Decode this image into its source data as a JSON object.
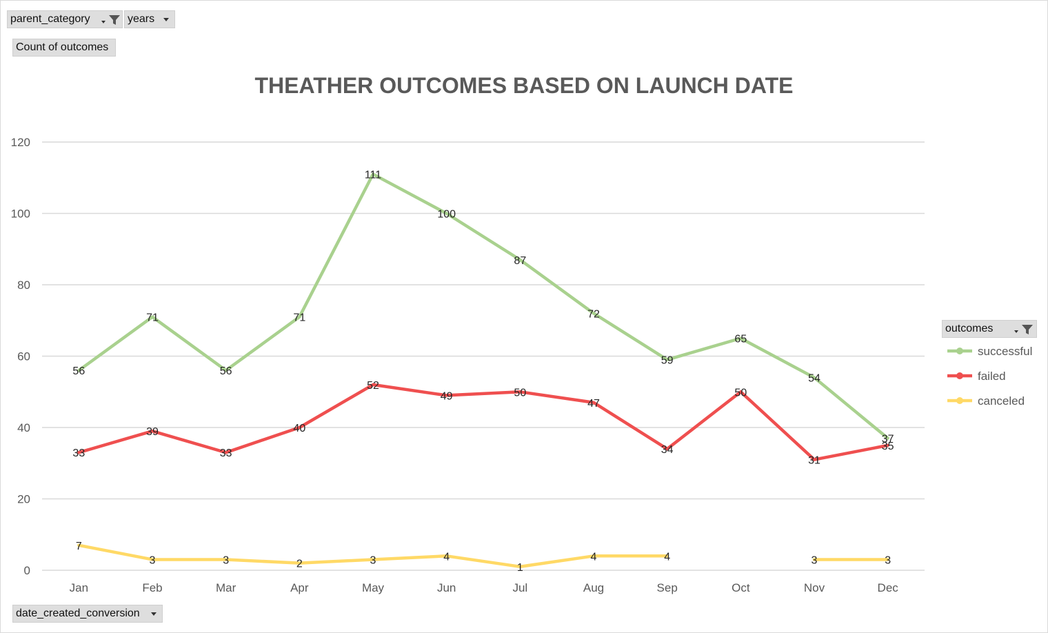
{
  "pivot": {
    "filters": [
      {
        "label": "parent_category",
        "filtered": true
      },
      {
        "label": "years",
        "filtered": false
      }
    ],
    "value_field": "Count of outcomes",
    "axis_field": "date_created_conversion",
    "legend_field": "outcomes"
  },
  "colors": {
    "successful": "#a9d18e",
    "failed": "#ef4f4f",
    "canceled": "#ffd966",
    "grid": "#d9d9d9",
    "title": "#595959",
    "tick": "#595959"
  },
  "chart_data": {
    "type": "line",
    "title": "THEATHER OUTCOMES BASED ON LAUNCH DATE",
    "xlabel": "",
    "ylabel": "",
    "ylim": [
      0,
      120
    ],
    "yticks": [
      0,
      20,
      40,
      60,
      80,
      100,
      120
    ],
    "grid": true,
    "legend_position": "right",
    "categories": [
      "Jan",
      "Feb",
      "Mar",
      "Apr",
      "May",
      "Jun",
      "Jul",
      "Aug",
      "Sep",
      "Oct",
      "Nov",
      "Dec"
    ],
    "series": [
      {
        "name": "successful",
        "values": [
          56,
          71,
          56,
          71,
          111,
          100,
          87,
          72,
          59,
          65,
          54,
          37
        ]
      },
      {
        "name": "failed",
        "values": [
          33,
          39,
          33,
          40,
          52,
          49,
          50,
          47,
          34,
          50,
          31,
          35
        ]
      },
      {
        "name": "canceled",
        "values": [
          7,
          3,
          3,
          2,
          3,
          4,
          1,
          4,
          4,
          null,
          3,
          3
        ]
      }
    ]
  }
}
